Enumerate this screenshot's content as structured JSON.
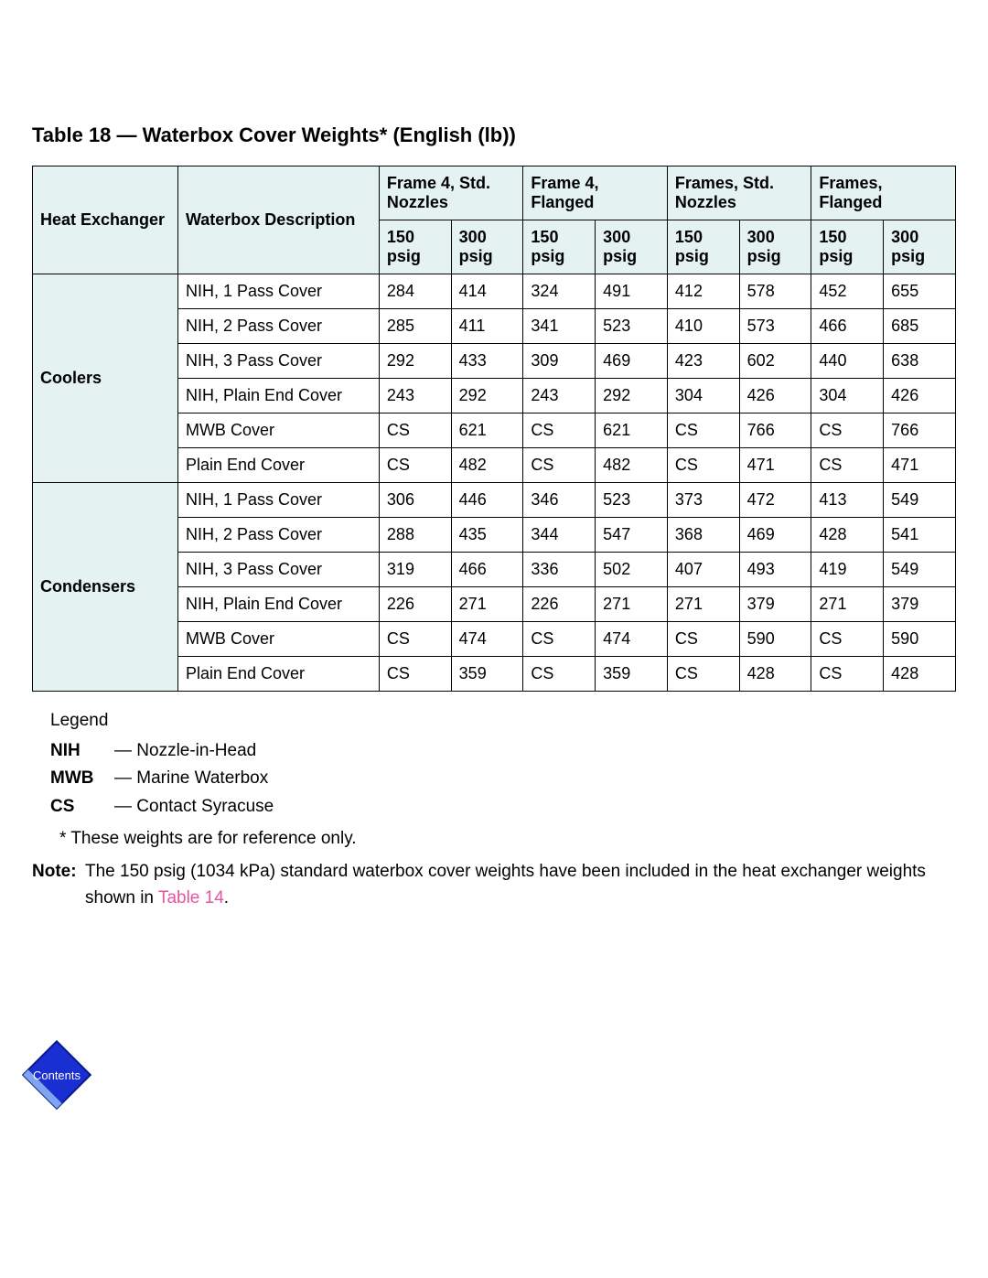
{
  "title": "Table 18 — Waterbox Cover Weights* (English (lb))",
  "colors": {
    "header_bg": "#e5f2f2",
    "border": "#000000",
    "text": "#000000",
    "link": "#e754a1",
    "icon_blue": "#1a2fd1"
  },
  "table": {
    "header_row1": {
      "heat_exchanger": "Heat Exchanger",
      "waterbox_desc": "Waterbox Description",
      "groups": [
        "Frame 4, Std. Nozzles",
        "Frame 4, Flanged",
        "Frames, Std. Nozzles",
        "Frames, Flanged"
      ]
    },
    "header_row2": [
      "150 psig",
      "300 psig",
      "150 psig",
      "300 psig",
      "150 psig",
      "300 psig",
      "150 psig",
      "300 psig"
    ],
    "sections": [
      {
        "name": "Coolers",
        "rows": [
          {
            "desc": "NIH, 1 Pass Cover",
            "vals": [
              "284",
              "414",
              "324",
              "491",
              "412",
              "578",
              "452",
              "655"
            ]
          },
          {
            "desc": "NIH, 2 Pass Cover",
            "vals": [
              "285",
              "411",
              "341",
              "523",
              "410",
              "573",
              "466",
              "685"
            ]
          },
          {
            "desc": "NIH, 3 Pass Cover",
            "vals": [
              "292",
              "433",
              "309",
              "469",
              "423",
              "602",
              "440",
              "638"
            ]
          },
          {
            "desc": "NIH, Plain End Cover",
            "vals": [
              "243",
              "292",
              "243",
              "292",
              "304",
              "426",
              "304",
              "426"
            ]
          },
          {
            "desc": "MWB Cover",
            "vals": [
              "CS",
              "621",
              "CS",
              "621",
              "CS",
              "766",
              "CS",
              "766"
            ]
          },
          {
            "desc": "Plain End Cover",
            "vals": [
              "CS",
              "482",
              "CS",
              "482",
              "CS",
              "471",
              "CS",
              "471"
            ]
          }
        ]
      },
      {
        "name": "Condensers",
        "rows": [
          {
            "desc": "NIH, 1 Pass Cover",
            "vals": [
              "306",
              "446",
              "346",
              "523",
              "373",
              "472",
              "413",
              "549"
            ]
          },
          {
            "desc": "NIH, 2 Pass Cover",
            "vals": [
              "288",
              "435",
              "344",
              "547",
              "368",
              "469",
              "428",
              "541"
            ]
          },
          {
            "desc": "NIH, 3 Pass Cover",
            "vals": [
              "319",
              "466",
              "336",
              "502",
              "407",
              "493",
              "419",
              "549"
            ]
          },
          {
            "desc": "NIH, Plain End Cover",
            "vals": [
              "226",
              "271",
              "226",
              "271",
              "271",
              "379",
              "271",
              "379"
            ]
          },
          {
            "desc": "MWB Cover",
            "vals": [
              "CS",
              "474",
              "CS",
              "474",
              "CS",
              "590",
              "CS",
              "590"
            ]
          },
          {
            "desc": "Plain End Cover",
            "vals": [
              "CS",
              "359",
              "CS",
              "359",
              "CS",
              "428",
              "CS",
              "428"
            ]
          }
        ]
      }
    ]
  },
  "legend": {
    "title": "Legend",
    "items": [
      {
        "key": "NIH",
        "def": "— Nozzle-in-Head"
      },
      {
        "key": "MWB",
        "def": "— Marine Waterbox"
      },
      {
        "key": "CS",
        "def": "— Contact Syracuse"
      }
    ]
  },
  "footnote": "* These weights are for reference only.",
  "note": {
    "label": "Note:",
    "body_pre": "The 150 psig (1034 kPa) standard waterbox cover weights have been included in the heat exchanger weights shown in ",
    "link_text": "Table 14",
    "body_post": "."
  },
  "contents_label": "Contents"
}
